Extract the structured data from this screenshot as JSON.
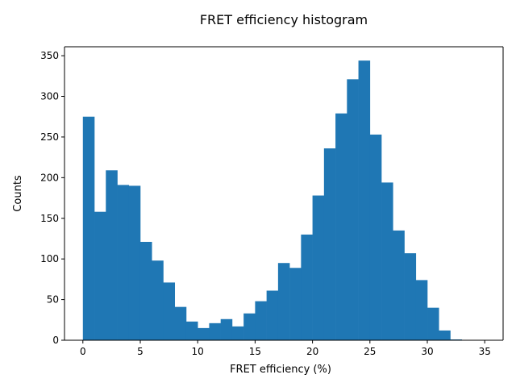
{
  "chart_data": {
    "type": "bar",
    "title": "FRET efficiency histogram",
    "xlabel": "FRET efficiency (%)",
    "ylabel": "Counts",
    "bin_edges": [
      0,
      1,
      2,
      3,
      4,
      5,
      6,
      7,
      8,
      9,
      10,
      11,
      12,
      13,
      14,
      15,
      16,
      17,
      18,
      19,
      20,
      21,
      22,
      23,
      24,
      25,
      26,
      27,
      28,
      29,
      30,
      31,
      32,
      33
    ],
    "values": [
      275,
      158,
      209,
      191,
      190,
      121,
      98,
      71,
      41,
      23,
      15,
      21,
      26,
      17,
      33,
      48,
      61,
      95,
      89,
      130,
      178,
      236,
      279,
      321,
      344,
      253,
      194,
      135,
      107,
      74,
      40,
      12,
      1
    ],
    "xlim": [
      -1.6,
      36.6
    ],
    "ylim": [
      0,
      361
    ],
    "xticks": [
      0,
      5,
      10,
      15,
      20,
      25,
      30,
      35
    ],
    "yticks": [
      0,
      50,
      100,
      150,
      200,
      250,
      300,
      350
    ],
    "bar_color": "#1f77b4",
    "grid": false
  }
}
